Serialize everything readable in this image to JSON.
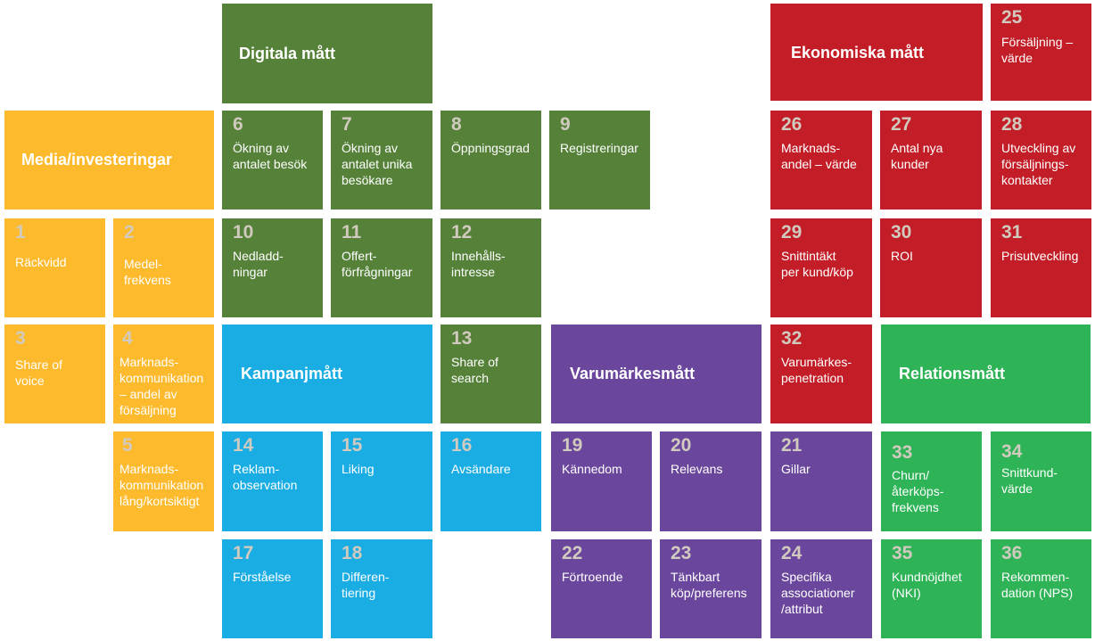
{
  "colors": {
    "media": "#FDBA2D",
    "digital": "#558139",
    "economic": "#C31E27",
    "campaign": "#1AADE4",
    "brand": "#6A479C",
    "relation": "#2EB357",
    "number_light": "#d1cabf"
  },
  "headers": {
    "digitala": "Digitala mått",
    "ekonomiska": "Ekonomiska mått",
    "media": "Media/investeringar",
    "kampanj": "Kampanjmått",
    "varumarke": "Varumärkesmått",
    "relation": "Relationsmått"
  },
  "tiles": {
    "t1": {
      "num": "1",
      "label": "Räckvidd"
    },
    "t2": {
      "num": "2",
      "label": "Medel-\nfrekvens"
    },
    "t3": {
      "num": "3",
      "label": "Share of\nvoice"
    },
    "t4": {
      "num": "4",
      "label": "Marknads-\nkommunikation\n– andel av\nförsäljning"
    },
    "t5": {
      "num": "5",
      "label": "Marknads-\nkommunikation\nlång/kortsiktigt"
    },
    "t6": {
      "num": "6",
      "label": "Ökning av\nantalet besök"
    },
    "t7": {
      "num": "7",
      "label": "Ökning av\nantalet unika\nbesökare"
    },
    "t8": {
      "num": "8",
      "label": "Öppningsgrad"
    },
    "t9": {
      "num": "9",
      "label": "Registreringar"
    },
    "t10": {
      "num": "10",
      "label": "Nedladd-\nningar"
    },
    "t11": {
      "num": "11",
      "label": "Offert-\nförfrågningar"
    },
    "t12": {
      "num": "12",
      "label": "Innehålls-\nintresse"
    },
    "t13": {
      "num": "13",
      "label": "Share of\nsearch"
    },
    "t14": {
      "num": "14",
      "label": "Reklam-\nobservation"
    },
    "t15": {
      "num": "15",
      "label": "Liking"
    },
    "t16": {
      "num": "16",
      "label": "Avsändare"
    },
    "t17": {
      "num": "17",
      "label": "Förståelse"
    },
    "t18": {
      "num": "18",
      "label": "Differen-\ntiering"
    },
    "t19": {
      "num": "19",
      "label": "Kännedom"
    },
    "t20": {
      "num": "20",
      "label": "Relevans"
    },
    "t21": {
      "num": "21",
      "label": "Gillar"
    },
    "t22": {
      "num": "22",
      "label": "Förtroende"
    },
    "t23": {
      "num": "23",
      "label": "Tänkbart\nköp/preferens"
    },
    "t24": {
      "num": "24",
      "label": "Specifika\nassociationer\n/attribut"
    },
    "t25": {
      "num": "25",
      "label": "Försäljning –\nvärde"
    },
    "t26": {
      "num": "26",
      "label": "Marknads-\nandel – värde"
    },
    "t27": {
      "num": "27",
      "label": "Antal nya\nkunder"
    },
    "t28": {
      "num": "28",
      "label": "Utveckling av\nförsäljnings-\nkontakter"
    },
    "t29": {
      "num": "29",
      "label": "Snittintäkt\nper kund/köp"
    },
    "t30": {
      "num": "30",
      "label": "ROI"
    },
    "t31": {
      "num": "31",
      "label": "Prisutveckling"
    },
    "t32": {
      "num": "32",
      "label": "Varumärkes-\npenetration"
    },
    "t33": {
      "num": "33",
      "label": "Churn/\nåterköps-\nfrekvens"
    },
    "t34": {
      "num": "34",
      "label": "Snittkund-\nvärde"
    },
    "t35": {
      "num": "35",
      "label": "Kundnöjdhet\n(NKI)"
    },
    "t36": {
      "num": "36",
      "label": "Rekommen-\ndation (NPS)"
    }
  }
}
